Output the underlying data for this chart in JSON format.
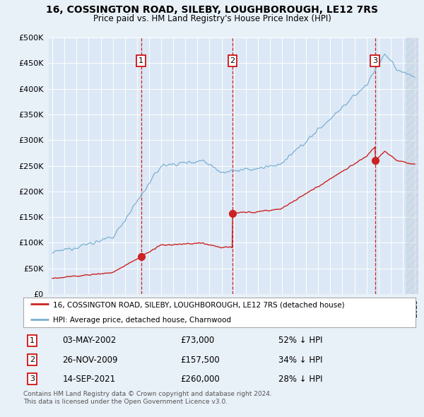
{
  "title": "16, COSSINGTON ROAD, SILEBY, LOUGHBOROUGH, LE12 7RS",
  "subtitle": "Price paid vs. HM Land Registry's House Price Index (HPI)",
  "background_color": "#e8f0f8",
  "plot_bg_color": "#dce8f5",
  "hpi_color": "#7ab0d4",
  "price_color": "#cc2222",
  "ylim": [
    0,
    500000
  ],
  "yticks": [
    0,
    50000,
    100000,
    150000,
    200000,
    250000,
    300000,
    350000,
    400000,
    450000,
    500000
  ],
  "transactions": [
    {
      "num": 1,
      "date": "03-MAY-2002",
      "price": 73000,
      "pct": "52%",
      "year": 2002.34
    },
    {
      "num": 2,
      "date": "26-NOV-2009",
      "price": 157500,
      "pct": "34%",
      "year": 2009.9
    },
    {
      "num": 3,
      "date": "14-SEP-2021",
      "price": 260000,
      "pct": "28%",
      "year": 2021.7
    }
  ],
  "footer1": "Contains HM Land Registry data © Crown copyright and database right 2024.",
  "footer2": "This data is licensed under the Open Government Licence v3.0.",
  "legend_label1": "16, COSSINGTON ROAD, SILEBY, LOUGHBOROUGH, LE12 7RS (detached house)",
  "legend_label2": "HPI: Average price, detached house, Charnwood",
  "hatch_start": 2024.25,
  "xlim_left": 1994.7,
  "xlim_right": 2025.3
}
